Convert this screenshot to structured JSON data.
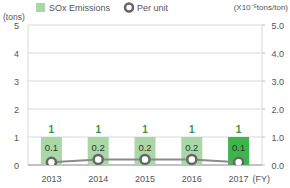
{
  "chart_data": {
    "type": "bar",
    "categories": [
      "2013",
      "2014",
      "2015",
      "2016",
      "2017"
    ],
    "xlabel": "(FY)",
    "ylabel": "(tons)",
    "y2label": "(X10⁻⁵tons/ton)",
    "ylim": [
      0,
      5
    ],
    "yticks": [
      0,
      1,
      2,
      3,
      4,
      5
    ],
    "y2lim": [
      0,
      5
    ],
    "y2ticks": [
      {
        "value": 0,
        "label": "0.0"
      },
      {
        "value": 1,
        "label": "1.0"
      },
      {
        "value": 2,
        "label": "2.0"
      },
      {
        "value": 3,
        "label": "3.0"
      },
      {
        "value": 4,
        "label": "4.0"
      },
      {
        "value": 5,
        "label": "5.0"
      }
    ],
    "grid": true,
    "legend": "top",
    "data_labels": true,
    "series": [
      {
        "name": "SOx Emissions",
        "type": "bar",
        "values": [
          1,
          1,
          1,
          1,
          1
        ],
        "colors": [
          "#a9d8a6",
          "#a9d8a6",
          "#a9d8a6",
          "#a9d8a6",
          "#3db54a"
        ]
      },
      {
        "name": "Per unit",
        "type": "line",
        "axis": "y2",
        "values": [
          0.1,
          0.2,
          0.2,
          0.2,
          0.1
        ],
        "color": "#8a8a8a",
        "marker": "circle"
      }
    ]
  }
}
